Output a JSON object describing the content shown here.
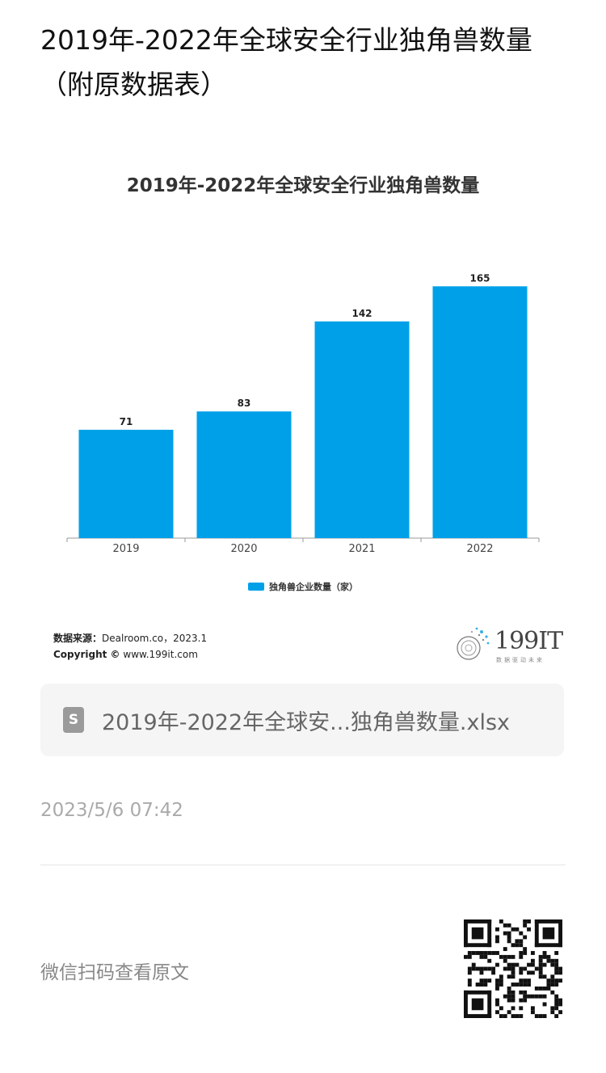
{
  "page": {
    "title": "2019年-2022年全球安全行业独角兽数量（附原数据表）"
  },
  "chart_data": {
    "type": "bar",
    "title": "2019年-2022年全球安全行业独角兽数量",
    "categories": [
      "2019",
      "2020",
      "2021",
      "2022"
    ],
    "series": [
      {
        "name": "独角兽企业数量（家）",
        "values": [
          71,
          83,
          142,
          165
        ]
      }
    ],
    "ylim": [
      0,
      180
    ],
    "grid": false,
    "legend_position": "bottom",
    "color": "#00a0e9"
  },
  "source": {
    "label": "数据来源：",
    "text": "Dealroom.co，2023.1",
    "copyright_label": "Copyright ©",
    "copyright_text": "www.199it.com"
  },
  "logo": {
    "text": "199IT",
    "sub": "数据驱动未来"
  },
  "attachment": {
    "icon": "spreadsheet-icon",
    "icon_letter": "S",
    "name": "2019年-2022年全球安...独角兽数量.xlsx"
  },
  "timestamp": "2023/5/6 07:42",
  "footer": {
    "scan_text": "微信扫码查看原文",
    "qr_icon": "qr-code-icon"
  }
}
